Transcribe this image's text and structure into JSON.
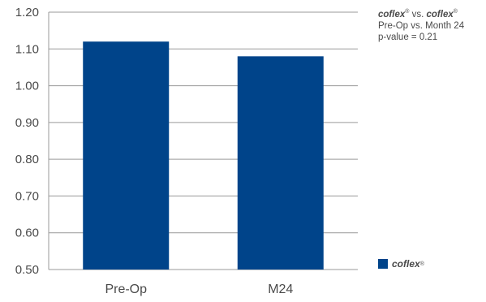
{
  "chart_data": {
    "type": "bar",
    "categories": [
      "Pre-Op",
      "M24"
    ],
    "series": [
      {
        "name": "coflex",
        "values": [
          1.12,
          1.08
        ]
      }
    ],
    "ylim": [
      0.5,
      1.2
    ],
    "yticks": [
      "0.50",
      "0.60",
      "0.70",
      "0.80",
      "0.90",
      "1.00",
      "1.10",
      "1.20"
    ],
    "grid": true,
    "legend_position": "bottom-right",
    "bar_color": "#00448a",
    "title": "",
    "xlabel": "",
    "ylabel": ""
  },
  "note": {
    "line1_brand_a": "coflex",
    "line1_mark_a": "®",
    "line1_vs": " vs. ",
    "line1_brand_b": "coflex",
    "line1_mark_b": "®",
    "line2": "Pre-Op vs. Month 24",
    "line3": "p-value = 0.21"
  },
  "legend": {
    "label": "coflex",
    "mark": "®"
  }
}
